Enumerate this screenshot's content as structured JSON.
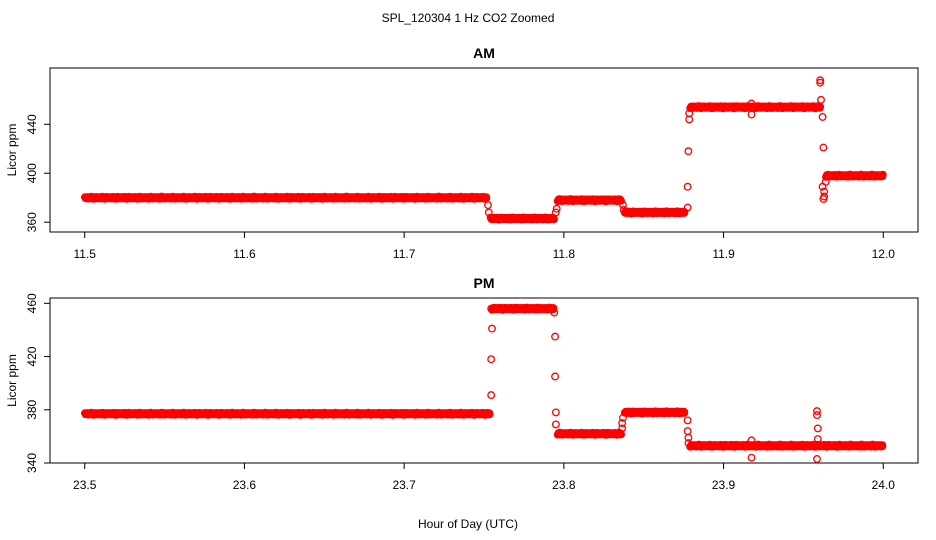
{
  "figure": {
    "title": "SPL_120304  1 Hz CO2 Zoomed",
    "xlabel": "Hour of Day (UTC)"
  },
  "colors": {
    "points": "#ff0000",
    "axis": "#000000"
  },
  "chart_data": [
    {
      "type": "scatter",
      "title": "AM",
      "ylabel": "Licor ppm",
      "xlim": [
        11.5,
        12.0
      ],
      "ylim": [
        352,
        486
      ],
      "xticks": [
        "11.5",
        "11.6",
        "11.7",
        "11.8",
        "11.9",
        "12.0"
      ],
      "xtick_values": [
        11.5,
        11.6,
        11.7,
        11.8,
        11.9,
        12.0
      ],
      "yticks": [
        "360",
        "400",
        "440"
      ],
      "ytick_values": [
        360,
        400,
        440
      ],
      "marker": "open-circle",
      "segments": [
        {
          "x_start": 11.5,
          "x_end": 11.752,
          "y": 380
        },
        {
          "x_start": 11.754,
          "x_end": 11.794,
          "y": 363
        },
        {
          "x_start": 11.796,
          "x_end": 11.836,
          "y": 378
        },
        {
          "x_start": 11.838,
          "x_end": 11.876,
          "y": 368
        },
        {
          "x_start": 11.879,
          "x_end": 11.961,
          "y": 454
        },
        {
          "x_start": 11.964,
          "x_end": 12.0,
          "y": 398
        }
      ],
      "points": [
        {
          "x": 11.7525,
          "y": 374
        },
        {
          "x": 11.753,
          "y": 368
        },
        {
          "x": 11.7955,
          "y": 371
        },
        {
          "x": 11.795,
          "y": 368
        },
        {
          "x": 11.837,
          "y": 374
        },
        {
          "x": 11.8375,
          "y": 370
        },
        {
          "x": 11.8775,
          "y": 372
        },
        {
          "x": 11.8775,
          "y": 389
        },
        {
          "x": 11.878,
          "y": 418
        },
        {
          "x": 11.8785,
          "y": 444
        },
        {
          "x": 11.8785,
          "y": 449
        },
        {
          "x": 11.9175,
          "y": 448
        },
        {
          "x": 11.9175,
          "y": 457
        },
        {
          "x": 11.9605,
          "y": 474
        },
        {
          "x": 11.9605,
          "y": 476
        },
        {
          "x": 11.961,
          "y": 460
        },
        {
          "x": 11.962,
          "y": 446
        },
        {
          "x": 11.9625,
          "y": 421
        },
        {
          "x": 11.962,
          "y": 389
        },
        {
          "x": 11.963,
          "y": 381
        },
        {
          "x": 11.9625,
          "y": 379
        },
        {
          "x": 11.963,
          "y": 385
        },
        {
          "x": 11.964,
          "y": 393
        }
      ]
    },
    {
      "type": "scatter",
      "title": "PM",
      "ylabel": "Licor ppm",
      "xlim": [
        23.5,
        24.0
      ],
      "ylim": [
        340,
        464
      ],
      "xticks": [
        "23.5",
        "23.6",
        "23.7",
        "23.8",
        "23.9",
        "24.0"
      ],
      "xtick_values": [
        23.5,
        23.6,
        23.7,
        23.8,
        23.9,
        24.0
      ],
      "yticks": [
        "340",
        "380",
        "420",
        "460"
      ],
      "ytick_values": [
        340,
        380,
        420,
        460
      ],
      "marker": "open-circle",
      "segments": [
        {
          "x_start": 23.5,
          "x_end": 23.754,
          "y": 377
        },
        {
          "x_start": 23.755,
          "x_end": 23.794,
          "y": 456
        },
        {
          "x_start": 23.796,
          "x_end": 23.836,
          "y": 362
        },
        {
          "x_start": 23.838,
          "x_end": 23.876,
          "y": 378
        },
        {
          "x_start": 23.879,
          "x_end": 24.0,
          "y": 353
        }
      ],
      "points": [
        {
          "x": 23.7545,
          "y": 391
        },
        {
          "x": 23.7545,
          "y": 418
        },
        {
          "x": 23.755,
          "y": 441
        },
        {
          "x": 23.7545,
          "y": 456
        },
        {
          "x": 23.794,
          "y": 453
        },
        {
          "x": 23.7945,
          "y": 435
        },
        {
          "x": 23.7945,
          "y": 405
        },
        {
          "x": 23.795,
          "y": 378
        },
        {
          "x": 23.795,
          "y": 369
        },
        {
          "x": 23.8365,
          "y": 366
        },
        {
          "x": 23.8365,
          "y": 370
        },
        {
          "x": 23.837,
          "y": 374
        },
        {
          "x": 23.8775,
          "y": 372
        },
        {
          "x": 23.8775,
          "y": 364
        },
        {
          "x": 23.878,
          "y": 359
        },
        {
          "x": 23.878,
          "y": 355
        },
        {
          "x": 23.9175,
          "y": 357
        },
        {
          "x": 23.9175,
          "y": 344
        },
        {
          "x": 23.9585,
          "y": 379
        },
        {
          "x": 23.9585,
          "y": 376
        },
        {
          "x": 23.959,
          "y": 366
        },
        {
          "x": 23.959,
          "y": 358
        },
        {
          "x": 23.9585,
          "y": 343
        }
      ]
    }
  ]
}
